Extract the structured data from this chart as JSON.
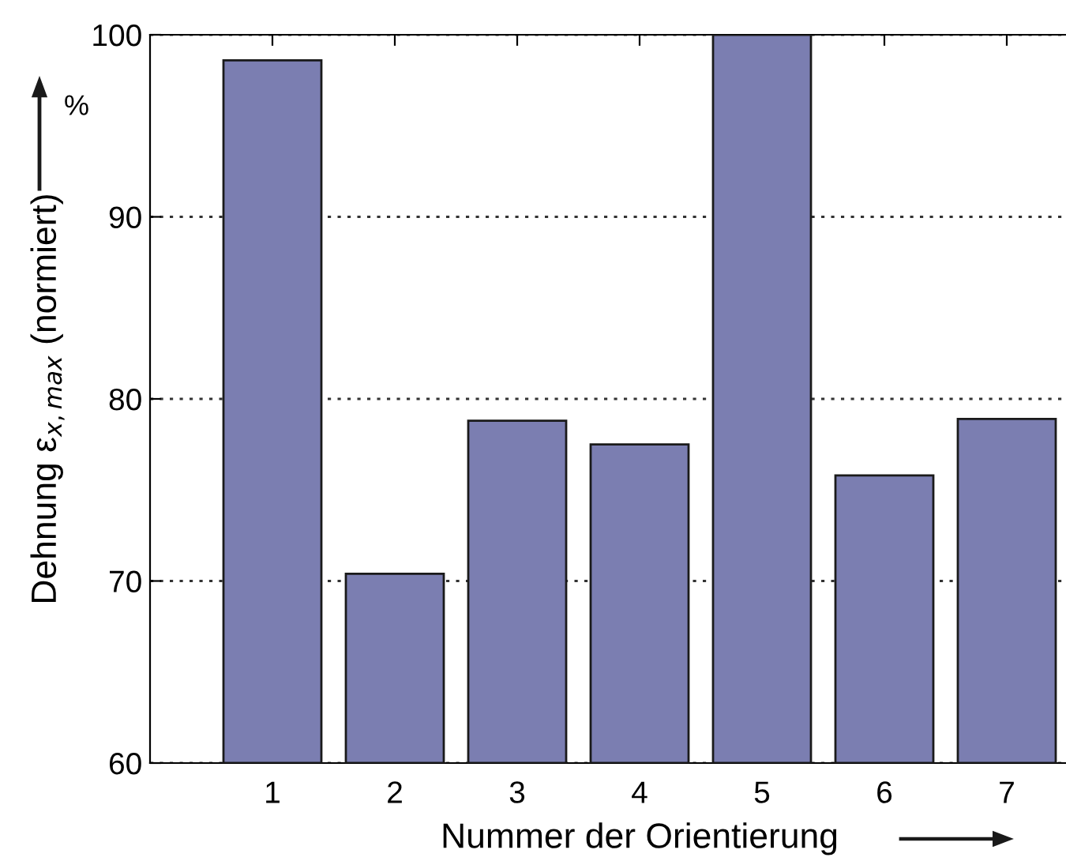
{
  "chart_data": {
    "type": "bar",
    "categories": [
      "1",
      "2",
      "3",
      "4",
      "5",
      "6",
      "7"
    ],
    "values": [
      98.6,
      70.4,
      78.8,
      77.5,
      100,
      75.8,
      78.9
    ],
    "color": "#7b7eb1",
    "xlabel": "Nummer der Orientierung",
    "ylabel": "Dehnung ε$_{x,max}$ (normiert)",
    "annotations": [
      "%"
    ],
    "ylim": [
      60,
      100
    ],
    "yticks": [
      60,
      70,
      80,
      90,
      100
    ],
    "grid": "y"
  }
}
